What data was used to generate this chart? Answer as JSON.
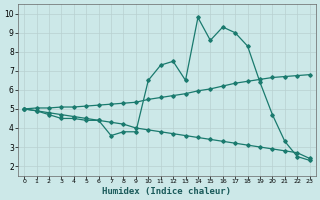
{
  "xlabel": "Humidex (Indice chaleur)",
  "xlim": [
    -0.5,
    23.5
  ],
  "ylim": [
    1.5,
    10.5
  ],
  "yticks": [
    2,
    3,
    4,
    5,
    6,
    7,
    8,
    9,
    10
  ],
  "xticks": [
    0,
    1,
    2,
    3,
    4,
    5,
    6,
    7,
    8,
    9,
    10,
    11,
    12,
    13,
    14,
    15,
    16,
    17,
    18,
    19,
    20,
    21,
    22,
    23
  ],
  "bg_color": "#cce8e8",
  "grid_color": "#b8d0d0",
  "line_color": "#1a7a6e",
  "line1_y": [
    5.0,
    4.9,
    4.7,
    4.5,
    4.5,
    4.4,
    4.4,
    3.6,
    3.8,
    3.8,
    6.5,
    7.3,
    7.5,
    6.5,
    9.8,
    8.6,
    9.3,
    9.0,
    8.3,
    6.4,
    4.7,
    3.3,
    2.5,
    2.3
  ],
  "line2_y": [
    5.0,
    5.05,
    5.05,
    5.1,
    5.1,
    5.15,
    5.2,
    5.25,
    5.3,
    5.35,
    5.5,
    5.6,
    5.7,
    5.8,
    5.95,
    6.05,
    6.2,
    6.35,
    6.45,
    6.55,
    6.65,
    6.7,
    6.75,
    6.8
  ],
  "line3_y": [
    5.0,
    4.9,
    4.8,
    4.7,
    4.6,
    4.5,
    4.4,
    4.3,
    4.2,
    4.0,
    3.9,
    3.8,
    3.7,
    3.6,
    3.5,
    3.4,
    3.3,
    3.2,
    3.1,
    3.0,
    2.9,
    2.8,
    2.7,
    2.4
  ],
  "marker": "D",
  "markersize": 1.8,
  "linewidth": 0.9
}
